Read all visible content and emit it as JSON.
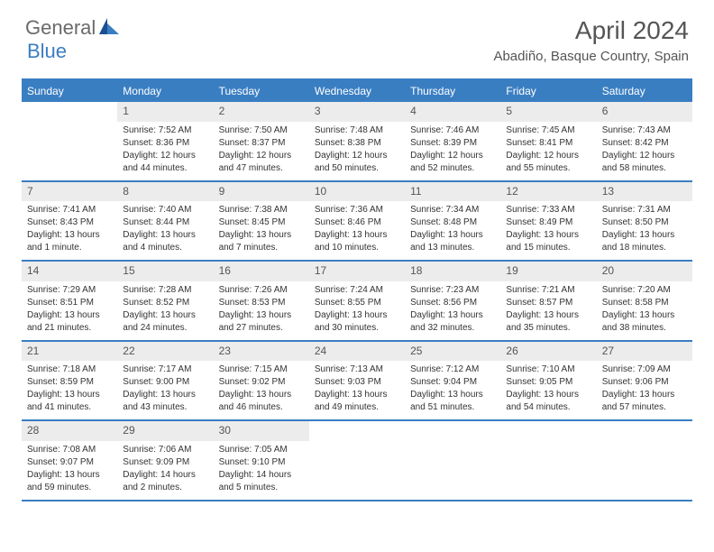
{
  "logo": {
    "general": "General",
    "blue": "Blue"
  },
  "title": "April 2024",
  "location": "Abadiño, Basque Country, Spain",
  "colors": {
    "accent": "#3a7ec2",
    "header_text": "#555555",
    "cell_num_bg": "#ececec",
    "body_text": "#333333",
    "background": "#ffffff"
  },
  "day_headers": [
    "Sunday",
    "Monday",
    "Tuesday",
    "Wednesday",
    "Thursday",
    "Friday",
    "Saturday"
  ],
  "weeks": [
    [
      {
        "num": "",
        "sunrise": "",
        "sunset": "",
        "day1": "",
        "day2": ""
      },
      {
        "num": "1",
        "sunrise": "Sunrise: 7:52 AM",
        "sunset": "Sunset: 8:36 PM",
        "day1": "Daylight: 12 hours",
        "day2": "and 44 minutes."
      },
      {
        "num": "2",
        "sunrise": "Sunrise: 7:50 AM",
        "sunset": "Sunset: 8:37 PM",
        "day1": "Daylight: 12 hours",
        "day2": "and 47 minutes."
      },
      {
        "num": "3",
        "sunrise": "Sunrise: 7:48 AM",
        "sunset": "Sunset: 8:38 PM",
        "day1": "Daylight: 12 hours",
        "day2": "and 50 minutes."
      },
      {
        "num": "4",
        "sunrise": "Sunrise: 7:46 AM",
        "sunset": "Sunset: 8:39 PM",
        "day1": "Daylight: 12 hours",
        "day2": "and 52 minutes."
      },
      {
        "num": "5",
        "sunrise": "Sunrise: 7:45 AM",
        "sunset": "Sunset: 8:41 PM",
        "day1": "Daylight: 12 hours",
        "day2": "and 55 minutes."
      },
      {
        "num": "6",
        "sunrise": "Sunrise: 7:43 AM",
        "sunset": "Sunset: 8:42 PM",
        "day1": "Daylight: 12 hours",
        "day2": "and 58 minutes."
      }
    ],
    [
      {
        "num": "7",
        "sunrise": "Sunrise: 7:41 AM",
        "sunset": "Sunset: 8:43 PM",
        "day1": "Daylight: 13 hours",
        "day2": "and 1 minute."
      },
      {
        "num": "8",
        "sunrise": "Sunrise: 7:40 AM",
        "sunset": "Sunset: 8:44 PM",
        "day1": "Daylight: 13 hours",
        "day2": "and 4 minutes."
      },
      {
        "num": "9",
        "sunrise": "Sunrise: 7:38 AM",
        "sunset": "Sunset: 8:45 PM",
        "day1": "Daylight: 13 hours",
        "day2": "and 7 minutes."
      },
      {
        "num": "10",
        "sunrise": "Sunrise: 7:36 AM",
        "sunset": "Sunset: 8:46 PM",
        "day1": "Daylight: 13 hours",
        "day2": "and 10 minutes."
      },
      {
        "num": "11",
        "sunrise": "Sunrise: 7:34 AM",
        "sunset": "Sunset: 8:48 PM",
        "day1": "Daylight: 13 hours",
        "day2": "and 13 minutes."
      },
      {
        "num": "12",
        "sunrise": "Sunrise: 7:33 AM",
        "sunset": "Sunset: 8:49 PM",
        "day1": "Daylight: 13 hours",
        "day2": "and 15 minutes."
      },
      {
        "num": "13",
        "sunrise": "Sunrise: 7:31 AM",
        "sunset": "Sunset: 8:50 PM",
        "day1": "Daylight: 13 hours",
        "day2": "and 18 minutes."
      }
    ],
    [
      {
        "num": "14",
        "sunrise": "Sunrise: 7:29 AM",
        "sunset": "Sunset: 8:51 PM",
        "day1": "Daylight: 13 hours",
        "day2": "and 21 minutes."
      },
      {
        "num": "15",
        "sunrise": "Sunrise: 7:28 AM",
        "sunset": "Sunset: 8:52 PM",
        "day1": "Daylight: 13 hours",
        "day2": "and 24 minutes."
      },
      {
        "num": "16",
        "sunrise": "Sunrise: 7:26 AM",
        "sunset": "Sunset: 8:53 PM",
        "day1": "Daylight: 13 hours",
        "day2": "and 27 minutes."
      },
      {
        "num": "17",
        "sunrise": "Sunrise: 7:24 AM",
        "sunset": "Sunset: 8:55 PM",
        "day1": "Daylight: 13 hours",
        "day2": "and 30 minutes."
      },
      {
        "num": "18",
        "sunrise": "Sunrise: 7:23 AM",
        "sunset": "Sunset: 8:56 PM",
        "day1": "Daylight: 13 hours",
        "day2": "and 32 minutes."
      },
      {
        "num": "19",
        "sunrise": "Sunrise: 7:21 AM",
        "sunset": "Sunset: 8:57 PM",
        "day1": "Daylight: 13 hours",
        "day2": "and 35 minutes."
      },
      {
        "num": "20",
        "sunrise": "Sunrise: 7:20 AM",
        "sunset": "Sunset: 8:58 PM",
        "day1": "Daylight: 13 hours",
        "day2": "and 38 minutes."
      }
    ],
    [
      {
        "num": "21",
        "sunrise": "Sunrise: 7:18 AM",
        "sunset": "Sunset: 8:59 PM",
        "day1": "Daylight: 13 hours",
        "day2": "and 41 minutes."
      },
      {
        "num": "22",
        "sunrise": "Sunrise: 7:17 AM",
        "sunset": "Sunset: 9:00 PM",
        "day1": "Daylight: 13 hours",
        "day2": "and 43 minutes."
      },
      {
        "num": "23",
        "sunrise": "Sunrise: 7:15 AM",
        "sunset": "Sunset: 9:02 PM",
        "day1": "Daylight: 13 hours",
        "day2": "and 46 minutes."
      },
      {
        "num": "24",
        "sunrise": "Sunrise: 7:13 AM",
        "sunset": "Sunset: 9:03 PM",
        "day1": "Daylight: 13 hours",
        "day2": "and 49 minutes."
      },
      {
        "num": "25",
        "sunrise": "Sunrise: 7:12 AM",
        "sunset": "Sunset: 9:04 PM",
        "day1": "Daylight: 13 hours",
        "day2": "and 51 minutes."
      },
      {
        "num": "26",
        "sunrise": "Sunrise: 7:10 AM",
        "sunset": "Sunset: 9:05 PM",
        "day1": "Daylight: 13 hours",
        "day2": "and 54 minutes."
      },
      {
        "num": "27",
        "sunrise": "Sunrise: 7:09 AM",
        "sunset": "Sunset: 9:06 PM",
        "day1": "Daylight: 13 hours",
        "day2": "and 57 minutes."
      }
    ],
    [
      {
        "num": "28",
        "sunrise": "Sunrise: 7:08 AM",
        "sunset": "Sunset: 9:07 PM",
        "day1": "Daylight: 13 hours",
        "day2": "and 59 minutes."
      },
      {
        "num": "29",
        "sunrise": "Sunrise: 7:06 AM",
        "sunset": "Sunset: 9:09 PM",
        "day1": "Daylight: 14 hours",
        "day2": "and 2 minutes."
      },
      {
        "num": "30",
        "sunrise": "Sunrise: 7:05 AM",
        "sunset": "Sunset: 9:10 PM",
        "day1": "Daylight: 14 hours",
        "day2": "and 5 minutes."
      },
      {
        "num": "",
        "sunrise": "",
        "sunset": "",
        "day1": "",
        "day2": ""
      },
      {
        "num": "",
        "sunrise": "",
        "sunset": "",
        "day1": "",
        "day2": ""
      },
      {
        "num": "",
        "sunrise": "",
        "sunset": "",
        "day1": "",
        "day2": ""
      },
      {
        "num": "",
        "sunrise": "",
        "sunset": "",
        "day1": "",
        "day2": ""
      }
    ]
  ]
}
